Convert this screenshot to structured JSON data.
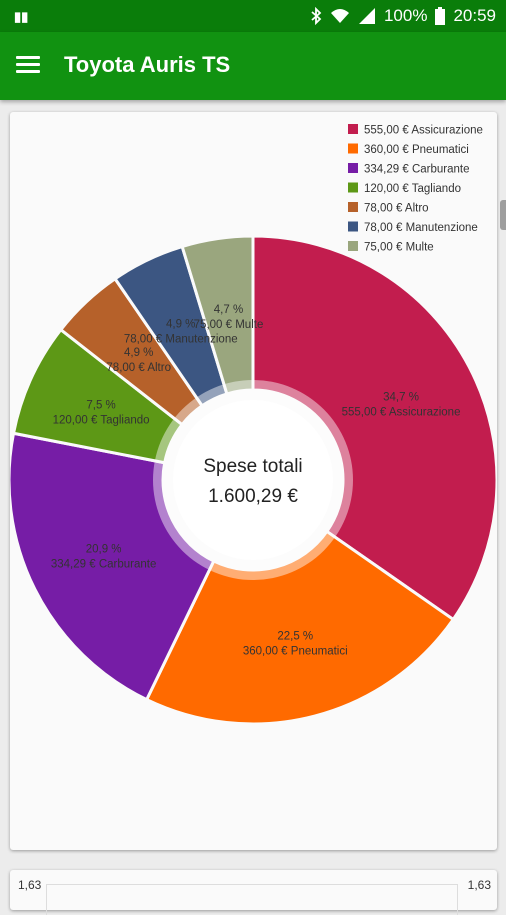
{
  "status_bar": {
    "left_glyph": "▮▮",
    "battery": "100%",
    "time": "20:59",
    "icons": [
      "bluetooth-icon",
      "wifi-icon",
      "signal-icon",
      "battery-icon"
    ]
  },
  "app_bar": {
    "title": "Toyota Auris TS",
    "menu_icon": "hamburger-menu-icon"
  },
  "chart_data": {
    "type": "pie",
    "donut": true,
    "center_label": [
      "Spese totali",
      "1.600,29 €"
    ],
    "slices": [
      {
        "name": "Assicurazione",
        "value": 555.0,
        "value_label": "555,00 €",
        "percent_label": "34,7 %",
        "color": "#c21d4e"
      },
      {
        "name": "Pneumatici",
        "value": 360.0,
        "value_label": "360,00 €",
        "percent_label": "22,5 %",
        "color": "#ff6a00"
      },
      {
        "name": "Carburante",
        "value": 334.29,
        "value_label": "334,29 €",
        "percent_label": "20,9 %",
        "color": "#761da6"
      },
      {
        "name": "Tagliando",
        "value": 120.0,
        "value_label": "120,00 €",
        "percent_label": "7,5 %",
        "color": "#5d9816"
      },
      {
        "name": "Altro",
        "value": 78.0,
        "value_label": "78,00 €",
        "percent_label": "4,9 %",
        "color": "#b6612a"
      },
      {
        "name": "Manutenzione",
        "value": 78.0,
        "value_label": "78,00 €",
        "percent_label": "4,9 %",
        "color": "#3c5682"
      },
      {
        "name": "Multe",
        "value": 75.0,
        "value_label": "75,00 €",
        "percent_label": "4,7 %",
        "color": "#9aa67e"
      }
    ],
    "legend": [
      "555,00 € Assicurazione",
      "360,00 € Pneumatici",
      "334,29 € Carburante",
      "120,00 € Tagliando",
      "78,00 € Altro",
      "78,00 € Manutenzione",
      "75,00 € Multe"
    ],
    "legend_position": "top-right"
  },
  "second_card": {
    "left_value": "1,63",
    "right_value": "1,63"
  }
}
